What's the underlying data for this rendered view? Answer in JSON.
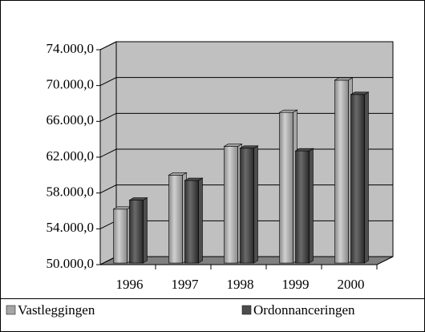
{
  "chart_data": {
    "type": "bar",
    "categories": [
      "1996",
      "1997",
      "1998",
      "1999",
      "2000"
    ],
    "series": [
      {
        "name": "Vastleggingen",
        "color": "#a6a6a6",
        "values": [
          56200,
          60000,
          63200,
          67000,
          70600
        ]
      },
      {
        "name": "Ordonnanceringen",
        "color": "#4d4d4d",
        "values": [
          57200,
          59400,
          63000,
          62700,
          69000
        ]
      }
    ],
    "ylim": [
      50000,
      74000
    ],
    "yticks": [
      {
        "value": 50000,
        "label": "50.000,0"
      },
      {
        "value": 54000,
        "label": "54.000,0"
      },
      {
        "value": 58000,
        "label": "58.000,0"
      },
      {
        "value": 62000,
        "label": "62.000,0"
      },
      {
        "value": 66000,
        "label": "66.000,0"
      },
      {
        "value": 70000,
        "label": "70.000,0"
      },
      {
        "value": 74000,
        "label": "74.000,0"
      }
    ],
    "grid": true,
    "legend": "bottom"
  }
}
